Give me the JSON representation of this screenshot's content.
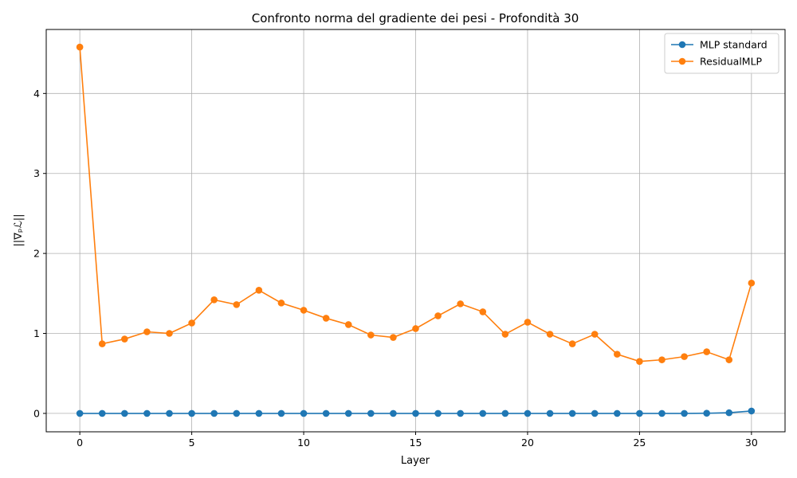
{
  "chart_data": {
    "type": "line",
    "title": "Confronto norma del gradiente dei pesi - Profondità 30",
    "xlabel": "Layer",
    "ylabel": "||∇ₚℒ||",
    "xlim": [
      -1.5,
      31.5
    ],
    "ylim": [
      -0.23,
      4.8
    ],
    "xticks": [
      0,
      5,
      10,
      15,
      20,
      25,
      30
    ],
    "yticks": [
      0,
      1,
      2,
      3,
      4
    ],
    "grid": true,
    "legend_position": "top-right",
    "x": [
      0,
      1,
      2,
      3,
      4,
      5,
      6,
      7,
      8,
      9,
      10,
      11,
      12,
      13,
      14,
      15,
      16,
      17,
      18,
      19,
      20,
      21,
      22,
      23,
      24,
      25,
      26,
      27,
      28,
      29,
      30
    ],
    "series": [
      {
        "name": "MLP standard",
        "color": "#1f77b4",
        "values": [
          0,
          0,
          0,
          0,
          0,
          0,
          0,
          0,
          0,
          0,
          0,
          0,
          0,
          0,
          0,
          0,
          0,
          0,
          0,
          0,
          0,
          0,
          0,
          0,
          0,
          0,
          0,
          0,
          0.002,
          0.008,
          0.03
        ]
      },
      {
        "name": "ResidualMLP",
        "color": "#ff7f0e",
        "values": [
          4.58,
          0.87,
          0.93,
          1.02,
          1.0,
          1.13,
          1.42,
          1.36,
          1.54,
          1.38,
          1.29,
          1.19,
          1.11,
          0.98,
          0.95,
          1.06,
          1.22,
          1.37,
          1.27,
          0.99,
          1.14,
          0.99,
          0.87,
          0.99,
          0.74,
          0.65,
          0.67,
          0.71,
          0.77,
          0.67,
          1.63
        ]
      }
    ]
  }
}
